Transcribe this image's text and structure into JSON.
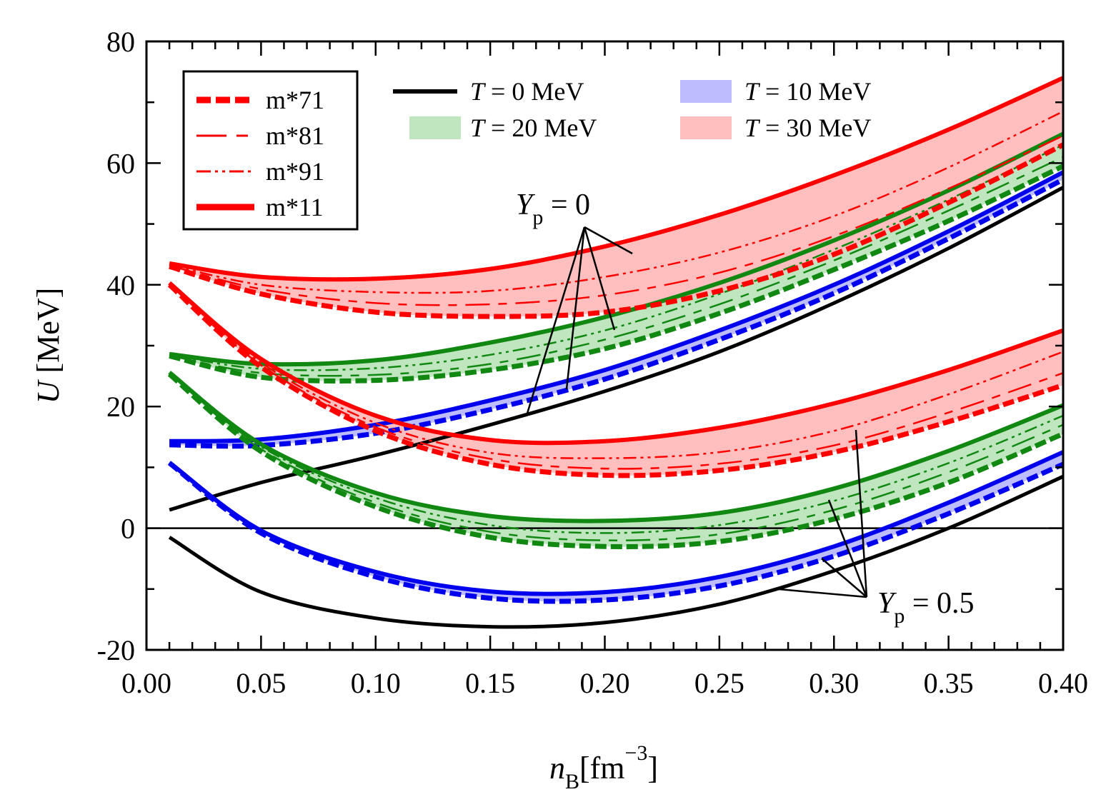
{
  "chart_data": {
    "type": "line",
    "title": "",
    "xlabel": "n_B [fm^-3]",
    "xlabel_main": "n",
    "xlabel_sub": "B",
    "xlabel_unit_pre": "[fm",
    "xlabel_sup": "−3",
    "xlabel_unit_post": "]",
    "ylabel": "U [MeV]",
    "ylabel_main": "U",
    "ylabel_unit": " [MeV]",
    "xlim": [
      0.0,
      0.4
    ],
    "ylim": [
      -20,
      80
    ],
    "x_ticks": [
      0.0,
      0.05,
      0.1,
      0.15,
      0.2,
      0.25,
      0.3,
      0.35,
      0.4
    ],
    "x_tick_labels": [
      "0.00",
      "0.05",
      "0.10",
      "0.15",
      "0.20",
      "0.25",
      "0.30",
      "0.35",
      "0.40"
    ],
    "y_ticks": [
      -20,
      0,
      20,
      40,
      60,
      80
    ],
    "y_tick_labels": [
      "-20",
      "0",
      "20",
      "40",
      "60",
      "80"
    ],
    "colors": {
      "T0": "#000000",
      "T10": "#0000ee",
      "T20": "#118811",
      "T30": "#ff0000",
      "T10_fill": "#bcbcff",
      "T20_fill": "#bfe6bf",
      "T30_fill": "#ffbfbf"
    },
    "legend_models": {
      "placement": "top-left",
      "entries": [
        {
          "label": "m*71",
          "style": "dashed-thick"
        },
        {
          "label": "m*81",
          "style": "long-dash"
        },
        {
          "label": "m*91",
          "style": "dash-dot-dot"
        },
        {
          "label": "m*11",
          "style": "solid-thick"
        }
      ]
    },
    "legend_temps": {
      "placement": "top-center",
      "entries": [
        {
          "label": "T = 0 MeV",
          "T": 0,
          "marker": "line"
        },
        {
          "label": "T = 10 MeV",
          "T": 10,
          "marker": "band"
        },
        {
          "label": "T = 20 MeV",
          "T": 20,
          "marker": "band"
        },
        {
          "label": "T = 30 MeV",
          "T": 30,
          "marker": "band"
        }
      ]
    },
    "annotations": [
      {
        "label": "Y_p = 0",
        "text_main": "Y",
        "text_sub": "p",
        "text_rest": " = 0"
      },
      {
        "label": "Y_p = 0.5",
        "text_main": "Y",
        "text_sub": "p",
        "text_rest": " = 0.5"
      }
    ],
    "series": [
      {
        "name": "T=0, Yp=0",
        "group": "Yp0",
        "T": 0,
        "model": "all",
        "x": [
          0.01,
          0.05,
          0.1,
          0.15,
          0.2,
          0.25,
          0.3,
          0.35,
          0.4
        ],
        "values": [
          3,
          7.5,
          12,
          17,
          22.5,
          29,
          37,
          46,
          56
        ]
      },
      {
        "name": "T=0, Yp=0.5",
        "group": "Yp05",
        "T": 0,
        "model": "all",
        "x": [
          0.01,
          0.05,
          0.1,
          0.15,
          0.2,
          0.25,
          0.3,
          0.35,
          0.4
        ],
        "values": [
          -1.5,
          -10.5,
          -14.8,
          -16.2,
          -15.5,
          -12.5,
          -7,
          0,
          8.5
        ]
      },
      {
        "name": "T=10, Yp=0, m*71",
        "group": "Yp0",
        "T": 10,
        "model": "m*71",
        "x": [
          0.01,
          0.05,
          0.1,
          0.15,
          0.2,
          0.25,
          0.3,
          0.35,
          0.4
        ],
        "values": [
          13.7,
          13.6,
          15.6,
          19.5,
          24.5,
          31,
          38.6,
          47.6,
          57.3
        ]
      },
      {
        "name": "T=10, Yp=0, m*11",
        "group": "Yp0",
        "T": 10,
        "model": "m*11",
        "x": [
          0.01,
          0.05,
          0.1,
          0.15,
          0.2,
          0.25,
          0.3,
          0.35,
          0.4
        ],
        "values": [
          14.3,
          14.6,
          17,
          21,
          26,
          32.5,
          40,
          48.8,
          58.5
        ]
      },
      {
        "name": "T=10, Yp=0.5, m*71",
        "group": "Yp05",
        "T": 10,
        "model": "m*71",
        "x": [
          0.01,
          0.05,
          0.1,
          0.15,
          0.2,
          0.25,
          0.3,
          0.35,
          0.4
        ],
        "values": [
          10.7,
          -0.8,
          -8,
          -11.5,
          -11.8,
          -9.5,
          -4.6,
          2.4,
          10.5
        ]
      },
      {
        "name": "T=10, Yp=0.5, m*11",
        "group": "Yp05",
        "T": 10,
        "model": "m*11",
        "x": [
          0.01,
          0.05,
          0.1,
          0.15,
          0.2,
          0.25,
          0.3,
          0.35,
          0.4
        ],
        "values": [
          10.8,
          -0.4,
          -7.2,
          -10.4,
          -10.5,
          -8,
          -3,
          4.2,
          12.5
        ]
      },
      {
        "name": "T=20, Yp=0, m*71",
        "group": "Yp0",
        "T": 20,
        "model": "m*71",
        "x": [
          0.01,
          0.05,
          0.1,
          0.15,
          0.2,
          0.25,
          0.3,
          0.35,
          0.4
        ],
        "values": [
          28.3,
          24.8,
          24.3,
          26,
          29.5,
          35.3,
          42.5,
          50.5,
          59.5
        ]
      },
      {
        "name": "T=20, Yp=0, m*81",
        "group": "Yp0",
        "T": 20,
        "model": "m*81",
        "x": [
          0.01,
          0.05,
          0.1,
          0.15,
          0.2,
          0.25,
          0.3,
          0.35,
          0.4
        ],
        "values": [
          28.4,
          25.5,
          25.2,
          27,
          31,
          36.8,
          44,
          52.2,
          61
        ]
      },
      {
        "name": "T=20, Yp=0, m*91",
        "group": "Yp0",
        "T": 20,
        "model": "m*91",
        "x": [
          0.01,
          0.05,
          0.1,
          0.15,
          0.2,
          0.25,
          0.3,
          0.35,
          0.4
        ],
        "values": [
          28.5,
          26.2,
          26.3,
          28.5,
          32.5,
          38.5,
          45.8,
          54,
          63
        ]
      },
      {
        "name": "T=20, Yp=0, m*11",
        "group": "Yp0",
        "T": 20,
        "model": "m*11",
        "x": [
          0.01,
          0.05,
          0.1,
          0.15,
          0.2,
          0.25,
          0.3,
          0.35,
          0.4
        ],
        "values": [
          28.6,
          27,
          27.6,
          30.5,
          34.7,
          40.3,
          47.3,
          55.5,
          64.8
        ]
      },
      {
        "name": "T=20, Yp=0.5, m*71",
        "group": "Yp05",
        "T": 20,
        "model": "m*71",
        "x": [
          0.01,
          0.05,
          0.1,
          0.15,
          0.2,
          0.25,
          0.3,
          0.35,
          0.4
        ],
        "values": [
          25.3,
          12.6,
          3.5,
          -1.5,
          -3,
          -2.2,
          1.5,
          7.5,
          15.5
        ]
      },
      {
        "name": "T=20, Yp=0.5, m*81",
        "group": "Yp05",
        "T": 20,
        "model": "m*81",
        "x": [
          0.01,
          0.05,
          0.1,
          0.15,
          0.2,
          0.25,
          0.3,
          0.35,
          0.4
        ],
        "values": [
          25.4,
          13,
          4.2,
          -0.6,
          -2,
          -1,
          3,
          9.2,
          17
        ]
      },
      {
        "name": "T=20, Yp=0.5, m*91",
        "group": "Yp05",
        "T": 20,
        "model": "m*91",
        "x": [
          0.01,
          0.05,
          0.1,
          0.15,
          0.2,
          0.25,
          0.3,
          0.35,
          0.4
        ],
        "values": [
          25.5,
          13.4,
          5,
          0.5,
          -0.8,
          0.5,
          4.5,
          10.7,
          18.5
        ]
      },
      {
        "name": "T=20, Yp=0.5, m*11",
        "group": "Yp05",
        "T": 20,
        "model": "m*11",
        "x": [
          0.01,
          0.05,
          0.1,
          0.15,
          0.2,
          0.25,
          0.3,
          0.35,
          0.4
        ],
        "values": [
          25.6,
          13.8,
          5.8,
          2,
          1.2,
          2.5,
          6.5,
          12.7,
          20.2
        ]
      },
      {
        "name": "T=30, Yp=0, m*71",
        "group": "Yp0",
        "T": 30,
        "model": "m*71",
        "x": [
          0.01,
          0.05,
          0.1,
          0.15,
          0.2,
          0.25,
          0.3,
          0.35,
          0.4
        ],
        "values": [
          43,
          38.5,
          35.5,
          34.8,
          35.5,
          39,
          45,
          53.5,
          63
        ]
      },
      {
        "name": "T=30, Yp=0, m*81",
        "group": "Yp0",
        "T": 30,
        "model": "m*81",
        "x": [
          0.01,
          0.05,
          0.1,
          0.15,
          0.2,
          0.25,
          0.3,
          0.35,
          0.4
        ],
        "values": [
          43.2,
          39.3,
          37,
          36.8,
          38.3,
          42,
          48,
          55.8,
          64.5
        ]
      },
      {
        "name": "T=30, Yp=0, m*91",
        "group": "Yp0",
        "T": 30,
        "model": "m*91",
        "x": [
          0.01,
          0.05,
          0.1,
          0.15,
          0.2,
          0.25,
          0.3,
          0.35,
          0.4
        ],
        "values": [
          43.3,
          40,
          38.8,
          39,
          41.3,
          45.3,
          51.3,
          59.3,
          68.5
        ]
      },
      {
        "name": "T=30, Yp=0, m*11",
        "group": "Yp0",
        "T": 30,
        "model": "m*11",
        "x": [
          0.01,
          0.05,
          0.1,
          0.15,
          0.2,
          0.25,
          0.3,
          0.35,
          0.4
        ],
        "values": [
          43.5,
          41.3,
          41,
          42.6,
          46.3,
          51.5,
          58,
          65.5,
          74
        ]
      },
      {
        "name": "T=30, Yp=0.5, m*71",
        "group": "Yp05",
        "T": 30,
        "model": "m*71",
        "x": [
          0.01,
          0.05,
          0.1,
          0.15,
          0.2,
          0.25,
          0.3,
          0.35,
          0.4
        ],
        "values": [
          40,
          26.5,
          16,
          10.5,
          8.7,
          9.5,
          12.5,
          17.5,
          23.5
        ]
      },
      {
        "name": "T=30, Yp=0.5, m*81",
        "group": "Yp05",
        "T": 30,
        "model": "m*81",
        "x": [
          0.01,
          0.05,
          0.1,
          0.15,
          0.2,
          0.25,
          0.3,
          0.35,
          0.4
        ],
        "values": [
          40.1,
          26.8,
          16.6,
          11.4,
          9.8,
          10.6,
          13.6,
          19,
          25.5
        ]
      },
      {
        "name": "T=30, Yp=0.5, m*91",
        "group": "Yp05",
        "T": 30,
        "model": "m*91",
        "x": [
          0.01,
          0.05,
          0.1,
          0.15,
          0.2,
          0.25,
          0.3,
          0.35,
          0.4
        ],
        "values": [
          40.2,
          27.2,
          17.3,
          12.4,
          11.5,
          12.5,
          16,
          22,
          29
        ]
      },
      {
        "name": "T=30, Yp=0.5, m*11",
        "group": "Yp05",
        "T": 30,
        "model": "m*11",
        "x": [
          0.01,
          0.05,
          0.1,
          0.15,
          0.2,
          0.25,
          0.3,
          0.35,
          0.4
        ],
        "values": [
          40.3,
          27.8,
          18.5,
          14.5,
          14.3,
          16.5,
          20.5,
          26,
          32.5
        ]
      }
    ]
  }
}
